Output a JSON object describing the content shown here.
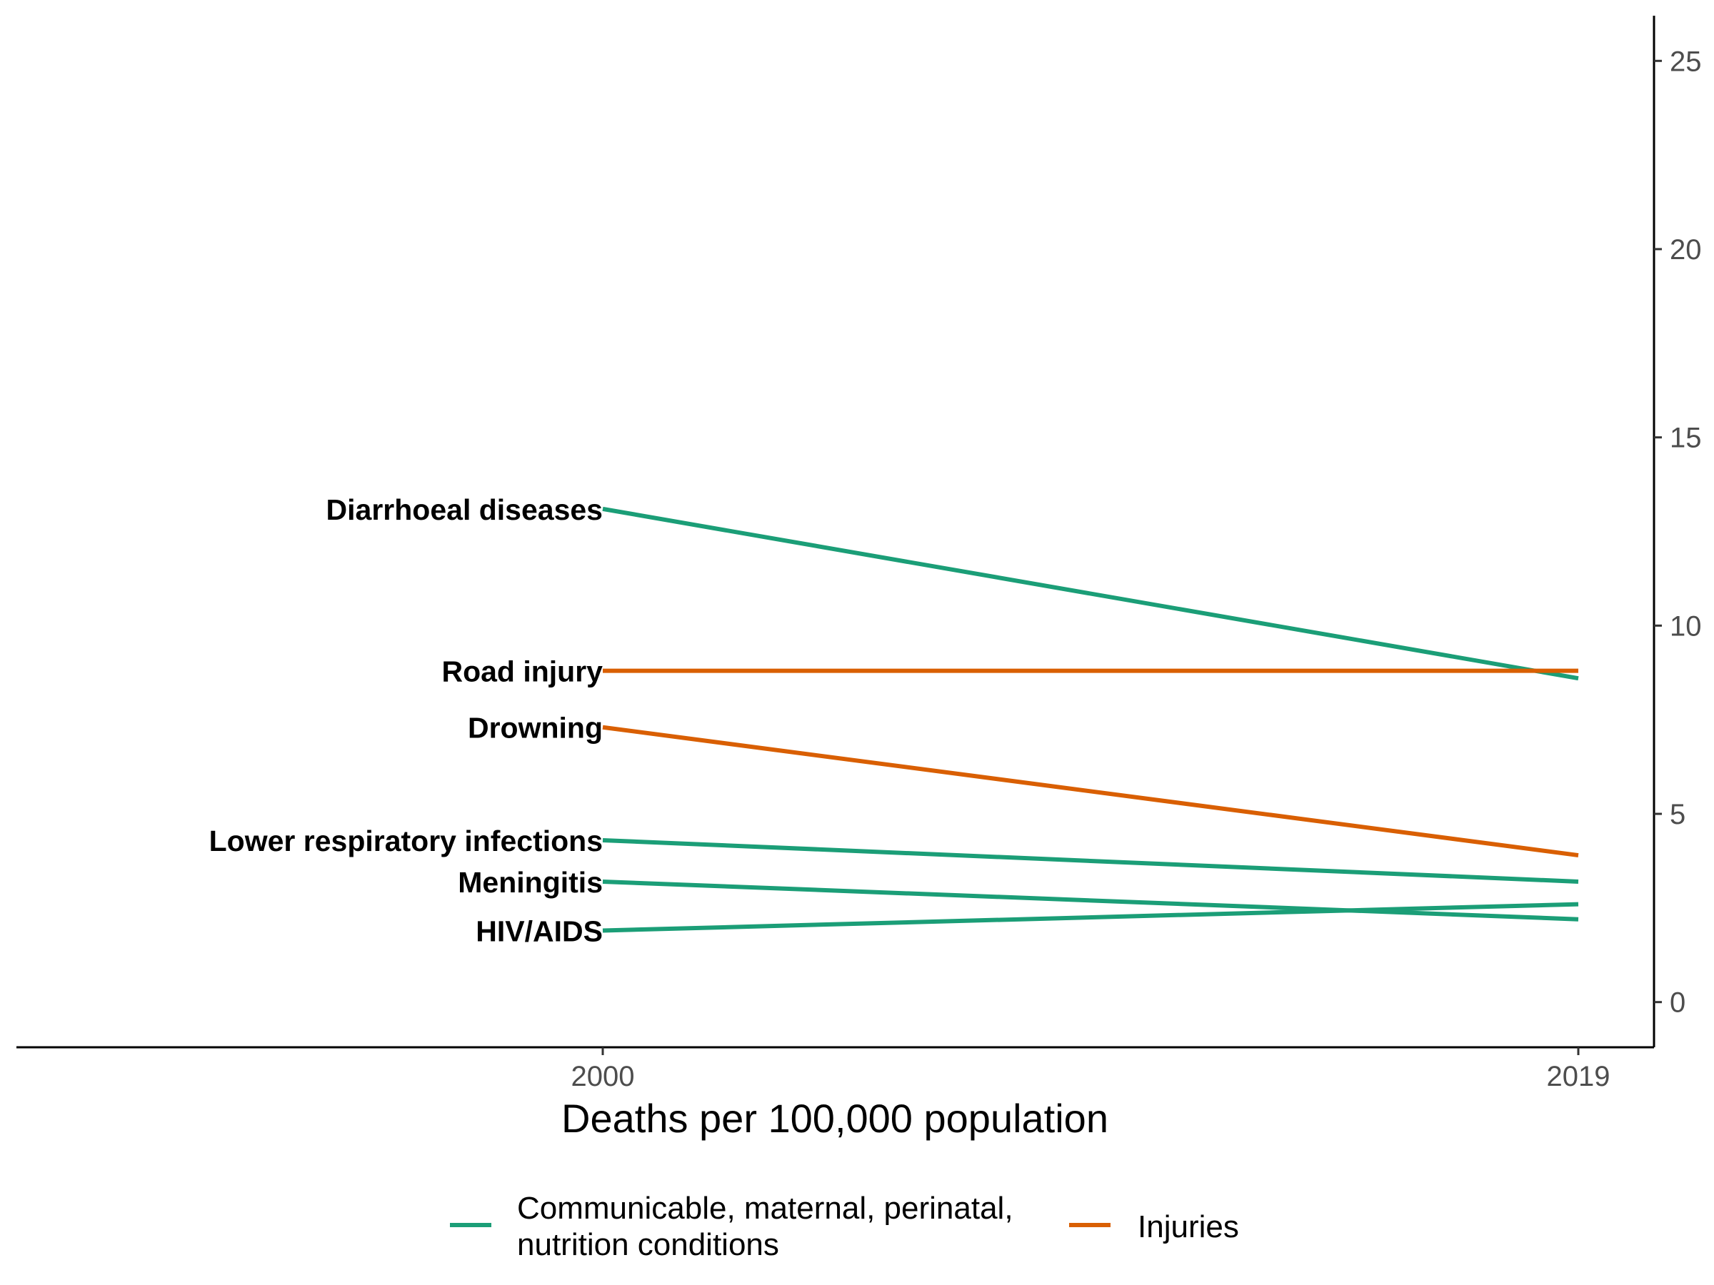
{
  "chart_data": {
    "type": "line",
    "x": [
      "2000",
      "2019"
    ],
    "xlabel": "Deaths per 100,000 population",
    "ylim": [
      -1.2,
      26.2
    ],
    "yticks": [
      0,
      5,
      10,
      15,
      20,
      25
    ],
    "grid": false,
    "legend_position": "bottom",
    "series": [
      {
        "name": "Diarrhoeal diseases",
        "group": "communicable",
        "values": [
          13.1,
          8.6
        ]
      },
      {
        "name": "Road injury",
        "group": "injuries",
        "values": [
          8.8,
          8.8
        ]
      },
      {
        "name": "Drowning",
        "group": "injuries",
        "values": [
          7.3,
          3.9
        ]
      },
      {
        "name": "Lower respiratory infections",
        "group": "communicable",
        "values": [
          4.3,
          3.2
        ]
      },
      {
        "name": "Meningitis",
        "group": "communicable",
        "values": [
          3.2,
          2.2
        ]
      },
      {
        "name": "HIV/AIDS",
        "group": "communicable",
        "values": [
          1.9,
          2.6
        ]
      }
    ],
    "legend": [
      {
        "key": "communicable",
        "lines": [
          "Communicable, maternal, perinatal,",
          "nutrition conditions"
        ],
        "color": "#1b9e77"
      },
      {
        "key": "injuries",
        "lines": [
          "Injuries"
        ],
        "color": "#d95f02"
      }
    ]
  }
}
